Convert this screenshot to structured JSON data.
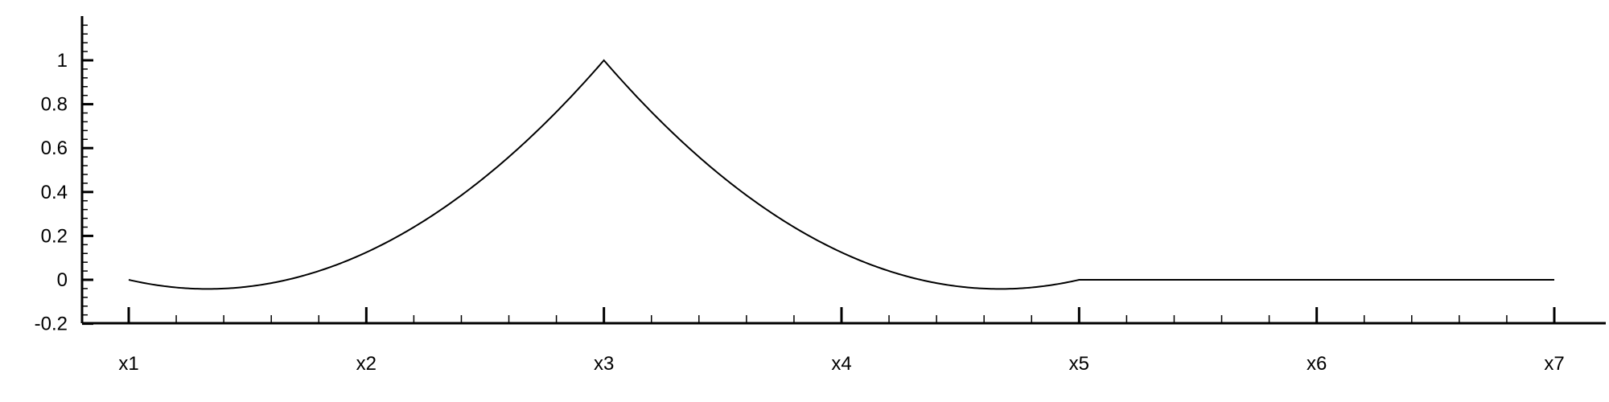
{
  "chart_data": {
    "type": "line",
    "title": "",
    "xlabel": "",
    "ylabel": "",
    "x_tick_labels": [
      "x1",
      "x2",
      "x3",
      "x4",
      "x5",
      "x6",
      "x7"
    ],
    "x_tick_positions": [
      1,
      2,
      3,
      4,
      5,
      6,
      7
    ],
    "xlim": [
      0.8,
      7.2
    ],
    "ylim": [
      -0.2,
      1.2
    ],
    "y_ticks": [
      -0.2,
      0,
      0.2,
      0.4,
      0.6,
      0.8,
      1
    ],
    "y_tick_labels": [
      "-0.2",
      "0",
      "0.2",
      "0.4",
      "0.6",
      "0.8",
      "1"
    ],
    "x_minor_per_major": 5,
    "y_minor_per_major": 5,
    "grid": false,
    "legend": "none",
    "line_color": "#000000",
    "series": [
      {
        "x": [
          1,
          1.25,
          1.5,
          1.75,
          2,
          2.25,
          2.5,
          2.75,
          3,
          3.25,
          3.5,
          3.75,
          4,
          4.25,
          4.5,
          4.75,
          5,
          5.5,
          6,
          6.5,
          7
        ],
        "y": [
          0,
          -0.094,
          -0.125,
          -0.094,
          0,
          0.156,
          0.375,
          0.656,
          1,
          0.656,
          0.375,
          0.156,
          0,
          -0.094,
          -0.125,
          -0.094,
          0,
          0,
          0,
          0,
          0
        ]
      }
    ]
  }
}
